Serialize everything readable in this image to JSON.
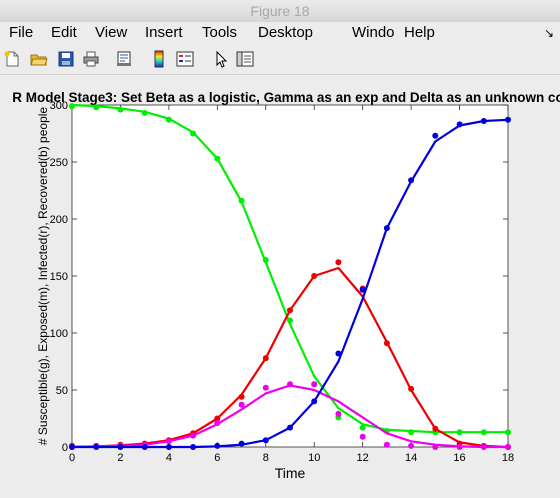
{
  "window": {
    "title": "Figure 18"
  },
  "menu": {
    "items": [
      "File",
      "Edit",
      "View",
      "Insert",
      "Tools",
      "Desktop",
      "Windo",
      "Help"
    ]
  },
  "toolbar": {
    "icons": [
      "new-figure-icon",
      "open-file-icon",
      "save-icon",
      "print-icon",
      "print-preview-icon",
      "colorbar-icon",
      "legend-icon",
      "pointer-icon",
      "property-editor-icon"
    ]
  },
  "chart_data": {
    "type": "line",
    "title": "R Model Stage3: Set Beta as a logistic, Gamma as an exp and Delta as an unknown co",
    "xlabel": "Time",
    "ylabel": "# Susceptible(g), Exposed(m), Infected(r), Recovered(b) people",
    "xlim": [
      0,
      18
    ],
    "ylim": [
      0,
      300
    ],
    "xticks": [
      0,
      2,
      4,
      6,
      8,
      10,
      12,
      14,
      16,
      18
    ],
    "yticks": [
      0,
      50,
      100,
      150,
      200,
      250,
      300
    ],
    "grid": false,
    "x": [
      0,
      1,
      2,
      3,
      4,
      5,
      6,
      7,
      8,
      9,
      10,
      11,
      12,
      13,
      14,
      15,
      16,
      17,
      18
    ],
    "series": [
      {
        "color": "#00ee00",
        "line": [
          300,
          299,
          297,
          294,
          288,
          276,
          253,
          215,
          162,
          108,
          62,
          34,
          20,
          15,
          14,
          13,
          13,
          13,
          13
        ],
        "points": [
          299,
          298,
          296,
          293,
          287,
          275,
          253,
          216,
          164,
          111,
          55,
          26,
          17,
          14,
          13,
          13,
          13,
          13,
          13
        ]
      },
      {
        "color": "#ee0000",
        "line": [
          0,
          0.5,
          1.5,
          3,
          6,
          12,
          25,
          46,
          78,
          120,
          150,
          157,
          132,
          92,
          50,
          16,
          4,
          1,
          0
        ],
        "points": [
          1,
          1,
          2,
          3,
          6,
          12,
          25,
          44,
          78,
          120,
          150,
          162,
          139,
          91,
          51,
          16,
          3,
          1,
          0
        ]
      },
      {
        "color": "#ee00ee",
        "line": [
          0,
          0.5,
          1,
          2,
          5,
          10,
          20,
          33,
          47,
          54,
          50,
          40,
          26,
          12,
          5,
          2,
          0.5,
          0,
          0
        ],
        "points": [
          0,
          1,
          1,
          2,
          5,
          10,
          21,
          37,
          52,
          55,
          55,
          29,
          9,
          2,
          1,
          0,
          0,
          0,
          0
        ]
      },
      {
        "color": "#0000dd",
        "line": [
          0,
          0,
          0,
          0,
          0,
          0,
          0.5,
          2,
          6,
          17,
          40,
          75,
          130,
          192,
          233,
          268,
          282,
          286,
          287
        ],
        "points": [
          0,
          0,
          0,
          0,
          0,
          0,
          1,
          3,
          6,
          17,
          40,
          82,
          138,
          192,
          234,
          273,
          283,
          286,
          287
        ]
      }
    ]
  }
}
